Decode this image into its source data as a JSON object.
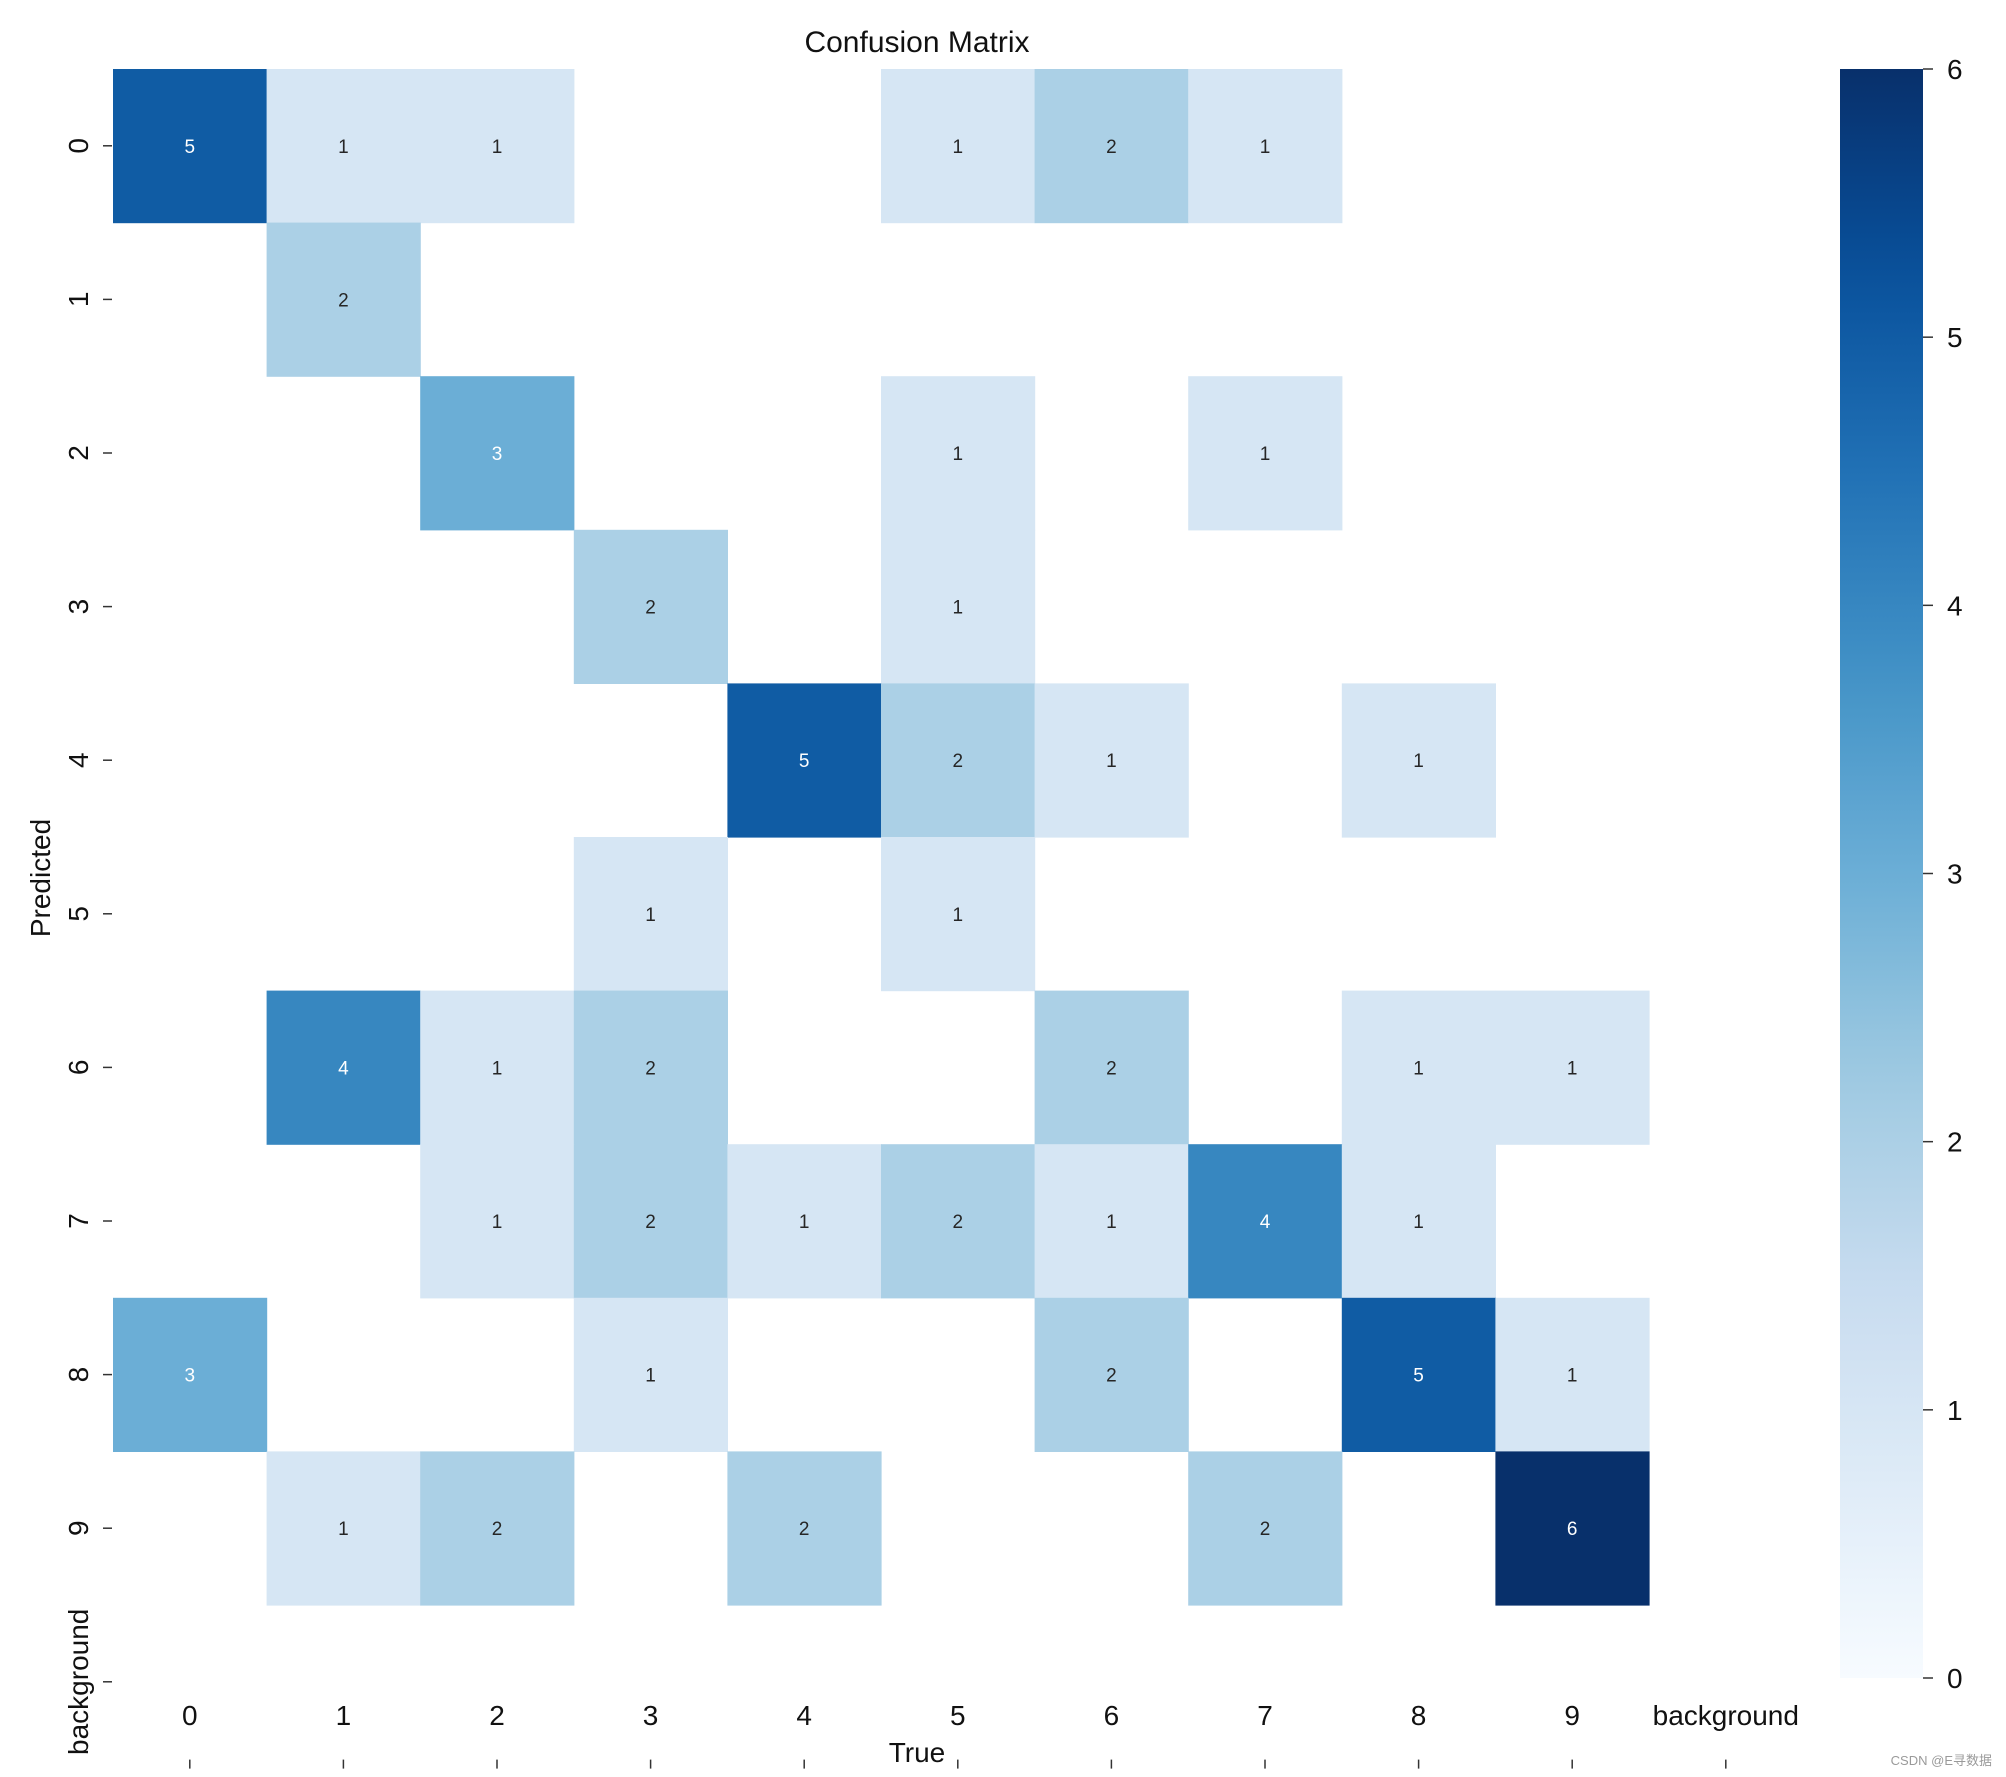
{
  "chart_data": {
    "type": "heatmap",
    "title": "Confusion Matrix",
    "xlabel": "True",
    "ylabel": "Predicted",
    "x_categories": [
      "0",
      "1",
      "2",
      "3",
      "4",
      "5",
      "6",
      "7",
      "8",
      "9",
      "background"
    ],
    "y_categories": [
      "0",
      "1",
      "2",
      "3",
      "4",
      "5",
      "6",
      "7",
      "8",
      "9",
      "background"
    ],
    "matrix": [
      [
        5,
        1,
        1,
        0,
        0,
        1,
        2,
        1,
        0,
        0,
        0
      ],
      [
        0,
        2,
        0,
        0,
        0,
        0,
        0,
        0,
        0,
        0,
        0
      ],
      [
        0,
        0,
        3,
        0,
        0,
        1,
        0,
        1,
        0,
        0,
        0
      ],
      [
        0,
        0,
        0,
        2,
        0,
        1,
        0,
        0,
        0,
        0,
        0
      ],
      [
        0,
        0,
        0,
        0,
        5,
        2,
        1,
        0,
        1,
        0,
        0
      ],
      [
        0,
        0,
        0,
        1,
        0,
        1,
        0,
        0,
        0,
        0,
        0
      ],
      [
        0,
        4,
        1,
        2,
        0,
        0,
        2,
        0,
        1,
        1,
        0
      ],
      [
        0,
        0,
        1,
        2,
        1,
        2,
        1,
        4,
        1,
        0,
        0
      ],
      [
        3,
        0,
        0,
        1,
        0,
        0,
        2,
        0,
        5,
        1,
        0
      ],
      [
        0,
        1,
        2,
        0,
        2,
        0,
        0,
        2,
        0,
        6,
        0
      ],
      [
        0,
        0,
        0,
        0,
        0,
        0,
        0,
        0,
        0,
        0,
        0
      ]
    ],
    "annotate_zero": false,
    "colormap": "Blues",
    "colorbar": {
      "min": 0,
      "max": 6,
      "ticks": [
        0,
        1,
        2,
        3,
        4,
        5,
        6
      ]
    }
  },
  "watermark": "CSDN @E寻数据"
}
